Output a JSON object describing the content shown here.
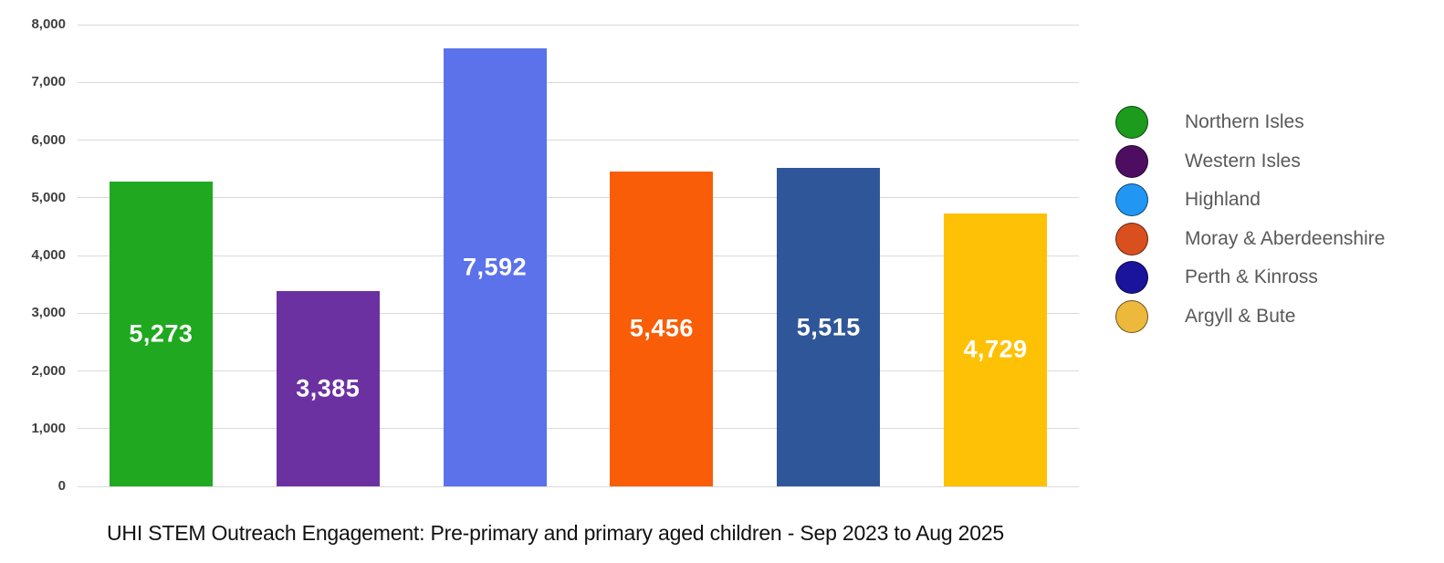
{
  "title": "UHI STEM Outreach Engagement: Pre-primary and primary aged children - Sep 2023 to Aug 2025",
  "chart_data": {
    "type": "bar",
    "title": "UHI STEM Outreach Engagement: Pre-primary and primary aged children - Sep 2023 to Aug 2025",
    "categories": [
      "Northern Isles",
      "Western Isles",
      "Highland",
      "Moray & Aberdeenshire",
      "Perth & Kinross",
      "Argyll & Bute"
    ],
    "values": [
      5273,
      3385,
      7592,
      5456,
      5515,
      4729
    ],
    "value_labels": [
      "5,273",
      "3,385",
      "7,592",
      "5,456",
      "5,515",
      "4,729"
    ],
    "bar_colors": [
      "#20a920",
      "#6b31a1",
      "#5b72ea",
      "#f95d07",
      "#30569a",
      "#ffc105"
    ],
    "legend_colors": [
      "#1d9b1d",
      "#4d0e62",
      "#2196f3",
      "#d9501e",
      "#1a139b",
      "#edb93c"
    ],
    "xlabel": "",
    "ylabel": "",
    "ylim": [
      0,
      8000
    ],
    "ytick_interval": 1000,
    "ytick_labels": [
      "0",
      "1,000",
      "2,000",
      "3,000",
      "4,000",
      "5,000",
      "6,000",
      "7,000",
      "8,000"
    ],
    "grid": true,
    "gridline_color": "#dadada",
    "legend_position": "right",
    "value_label_color": "#ffffff",
    "background_color": "#ffffff"
  }
}
